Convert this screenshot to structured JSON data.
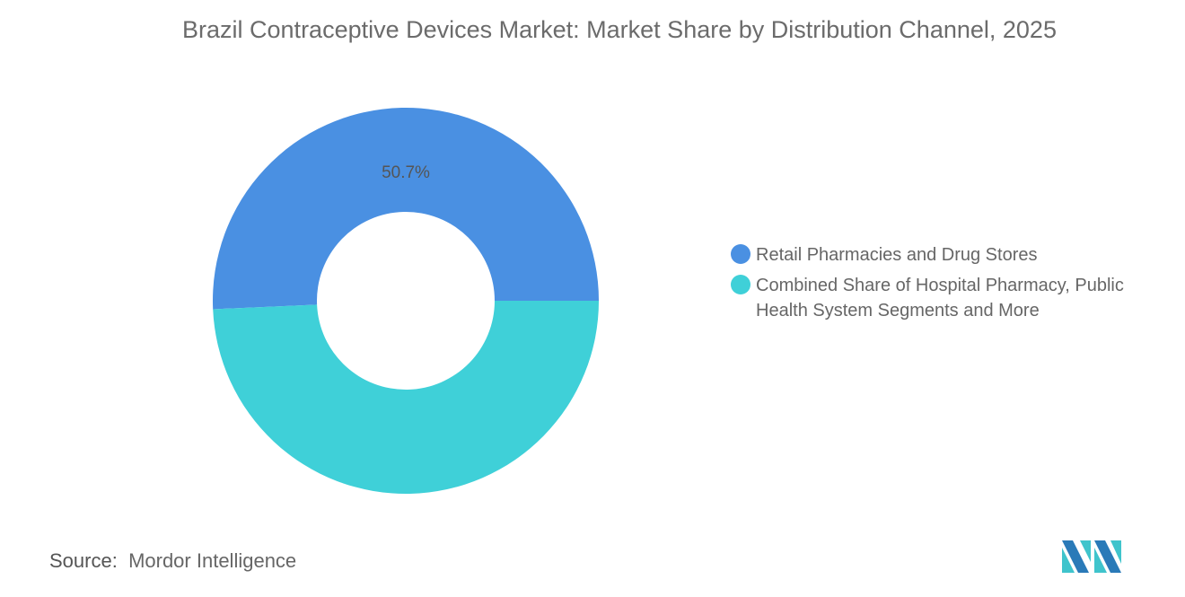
{
  "chart_data": {
    "type": "pie",
    "variant": "donut",
    "title": "Brazil Contraceptive Devices Market: Market Share by Distribution Channel, 2025",
    "categories": [
      "Retail Pharmacies and Drug Stores",
      "Combined Share of Hospital Pharmacy, Public Health System Segments and More"
    ],
    "values": [
      50.7,
      49.3
    ],
    "data_labels": [
      "50.7%",
      ""
    ],
    "colors": [
      "#4a90e2",
      "#3fd0d8"
    ],
    "legend_placement": "right"
  },
  "source": {
    "label": "Source:",
    "value": "Mordor Intelligence"
  },
  "logo": {
    "name": "mordor-intelligence-logo",
    "colors": [
      "#2a7ab8",
      "#3fc4cc"
    ]
  }
}
